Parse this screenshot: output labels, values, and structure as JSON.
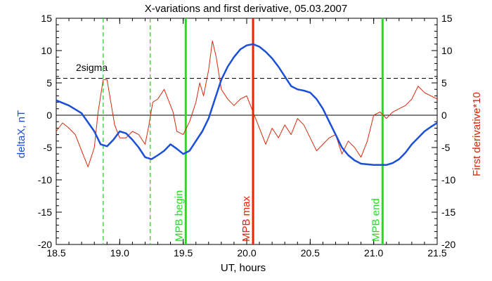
{
  "chart_data": {
    "type": "line",
    "title": "X-variations and first derivative, 05.03.2007",
    "xlabel": "UT, hours",
    "ylabel_left": "deltaX, nT",
    "ylabel_right": "First derivative*10",
    "xlim": [
      18.5,
      21.5
    ],
    "ylim": [
      -20,
      15
    ],
    "xticks": [
      "18.5",
      "19.0",
      "19.5",
      "20.0",
      "20.5",
      "21.0",
      "21.5"
    ],
    "xtick_values": [
      18.5,
      19.0,
      19.5,
      20.0,
      20.5,
      21.0,
      21.5
    ],
    "yticks": [
      "15",
      "10",
      "5",
      "0",
      "-5",
      "-10",
      "-15",
      "-20"
    ],
    "ytick_values": [
      15,
      10,
      5,
      0,
      -5,
      -10,
      -15,
      -20
    ],
    "sigma_level": 5.7,
    "sigma_label": "2sigma",
    "zero_line": 0,
    "series": [
      {
        "color": "#1a4fd6",
        "x": [
          18.5,
          18.6,
          18.7,
          18.8,
          18.85,
          18.9,
          18.95,
          19.0,
          19.05,
          19.1,
          19.15,
          19.2,
          19.25,
          19.3,
          19.35,
          19.4,
          19.45,
          19.5,
          19.55,
          19.6,
          19.65,
          19.7,
          19.75,
          19.8,
          19.85,
          19.9,
          19.95,
          20.0,
          20.05,
          20.1,
          20.15,
          20.2,
          20.25,
          20.3,
          20.35,
          20.4,
          20.45,
          20.5,
          20.55,
          20.6,
          20.65,
          20.7,
          20.75,
          20.8,
          20.85,
          20.9,
          20.95,
          21.0,
          21.05,
          21.1,
          21.15,
          21.2,
          21.25,
          21.3,
          21.35,
          21.4,
          21.45,
          21.5
        ],
        "values": [
          2.3,
          1.5,
          0.3,
          -2.5,
          -4.5,
          -4.8,
          -3.8,
          -2.5,
          -2.8,
          -3.8,
          -5.0,
          -6.5,
          -6.8,
          -6.2,
          -5.5,
          -4.5,
          -5.2,
          -6.0,
          -5.5,
          -4.0,
          -2.5,
          -0.5,
          2.5,
          5.5,
          7.5,
          9.0,
          10.2,
          10.8,
          11.0,
          10.6,
          9.8,
          8.8,
          7.5,
          6.0,
          4.5,
          4.0,
          3.8,
          3.5,
          2.5,
          1.0,
          -1.0,
          -3.0,
          -5.0,
          -6.2,
          -7.0,
          -7.5,
          -7.6,
          -7.7,
          -7.7,
          -7.7,
          -7.4,
          -6.8,
          -5.8,
          -4.5,
          -3.5,
          -2.5,
          -1.8,
          -1.2
        ]
      },
      {
        "color": "#d42a0a",
        "x": [
          18.5,
          18.55,
          18.6,
          18.65,
          18.7,
          18.75,
          18.8,
          18.83,
          18.87,
          18.9,
          18.93,
          18.96,
          19.0,
          19.05,
          19.1,
          19.15,
          19.2,
          19.23,
          19.26,
          19.3,
          19.35,
          19.38,
          19.42,
          19.45,
          19.5,
          19.55,
          19.6,
          19.63,
          19.66,
          19.7,
          19.73,
          19.76,
          19.8,
          19.85,
          19.9,
          19.95,
          20.0,
          20.05,
          20.1,
          20.15,
          20.2,
          20.25,
          20.3,
          20.35,
          20.4,
          20.45,
          20.5,
          20.55,
          20.6,
          20.65,
          20.7,
          20.75,
          20.8,
          20.85,
          20.9,
          20.95,
          21.0,
          21.05,
          21.1,
          21.15,
          21.2,
          21.25,
          21.3,
          21.35,
          21.4,
          21.45,
          21.5
        ],
        "values": [
          -2.5,
          -1.2,
          -2.0,
          -3.0,
          -5.5,
          -8.0,
          -5.0,
          0.5,
          5.5,
          5.5,
          2.0,
          -1.5,
          -3.5,
          -3.5,
          -2.5,
          -3.0,
          -4.5,
          -1.5,
          2.0,
          2.5,
          4.0,
          2.5,
          0.5,
          -2.5,
          -3.0,
          -1.0,
          2.0,
          5.0,
          3.0,
          7.0,
          11.5,
          9.0,
          4.0,
          2.5,
          1.5,
          2.5,
          3.0,
          0.5,
          -2.0,
          -4.5,
          -2.0,
          -3.5,
          -1.5,
          -3.0,
          -0.5,
          -1.5,
          -3.5,
          -5.5,
          -4.5,
          -3.5,
          -3.0,
          -6.0,
          -4.0,
          -5.0,
          -6.5,
          -4.0,
          0.0,
          0.5,
          -0.5,
          0.5,
          1.0,
          1.5,
          2.5,
          4.5,
          3.5,
          3.0,
          2.5
        ]
      }
    ],
    "markers": [
      {
        "x": 18.87,
        "style": "dashed",
        "color": "#22cc22",
        "label": ""
      },
      {
        "x": 19.24,
        "style": "dashed",
        "color": "#22cc22",
        "label": ""
      },
      {
        "x": 19.52,
        "style": "solid",
        "color": "#22dd22",
        "label": "MPB begin"
      },
      {
        "x": 20.05,
        "style": "solid",
        "color": "#ee2200",
        "label": "MPB max"
      },
      {
        "x": 21.07,
        "style": "solid",
        "color": "#22dd22",
        "label": "MPB end"
      }
    ],
    "grid": false
  }
}
